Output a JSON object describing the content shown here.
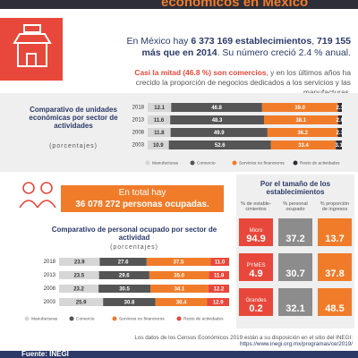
{
  "header": {
    "title": "económicos en México"
  },
  "intro": [
    [
      {
        "text": "En México hay ",
        "bold": false
      },
      {
        "text": "6 373 169 establecimientos",
        "bold": true
      },
      {
        "text": ", ",
        "bold": false
      },
      {
        "text": "719 155 más que en 2014",
        "bold": true
      },
      {
        "text": ". Su número creció 2.4 % anual.",
        "bold": false
      }
    ],
    [
      {
        "text": "Casi la mitad (46.8 %) son comercios",
        "bold": true,
        "color": "#e8483b"
      },
      {
        "text": ", y en los últimos años ha crecido la proporción de negocios dedicados a los servicios y las manufacturas.",
        "bold": false
      }
    ]
  ],
  "chart_data": [
    {
      "type": "bar",
      "orientation": "horizontal",
      "stacked": true,
      "title": "Comparativo de unidades económicas por sector de actividades",
      "subtitle": "(porcentajes)",
      "categories": [
        "2018",
        "2013",
        "2008",
        "2003"
      ],
      "xlim": [
        0,
        100
      ],
      "series": [
        {
          "name": "Manufacturas",
          "color": "#d6d6d6",
          "values": [
            12.1,
            11.6,
            11.8,
            10.9
          ],
          "value_labels": [
            "12.1",
            "11.6",
            "11.8",
            "10.9"
          ]
        },
        {
          "name": "Comercio",
          "color": "#555555",
          "values": [
            46.8,
            48.3,
            49.9,
            52.6
          ],
          "value_labels": [
            "46.8",
            "48.3",
            "49.9",
            "52.6"
          ]
        },
        {
          "name": "Servicios no financieros",
          "color": "#f07c2a",
          "values": [
            39,
            38.1,
            36.2,
            33.4
          ],
          "value_labels": [
            "39.0",
            "38.1",
            "36.2",
            "33.4"
          ]
        },
        {
          "name": "Resto de actividades",
          "color": "#2e2e38",
          "values": [
            2.1,
            2,
            2.1,
            3.1
          ],
          "value_labels": [
            "2.1",
            "2.0",
            "2.1",
            "3.1"
          ]
        }
      ]
    },
    {
      "type": "bar",
      "orientation": "horizontal",
      "stacked": true,
      "title": "Comparativo de personal ocupado por sector de actividad",
      "subtitle": "(porcentajes)",
      "categories": [
        "2018",
        "2013",
        "2008",
        "2003"
      ],
      "xlim": [
        0,
        100
      ],
      "series": [
        {
          "name": "Manufacturas",
          "color": "#d6d6d6",
          "values": [
            23.9,
            23.5,
            23.2,
            25.9
          ],
          "value_labels": [
            "23.9",
            "23.5",
            "23.2",
            "25.9"
          ]
        },
        {
          "name": "Comercio",
          "color": "#555555",
          "values": [
            27.6,
            29.6,
            30.5,
            30.8
          ],
          "value_labels": [
            "27.6",
            "29.6",
            "30.5",
            "30.8"
          ]
        },
        {
          "name": "Servicios no financieros",
          "color": "#f07c2a",
          "values": [
            37.5,
            35,
            34.1,
            30.4
          ],
          "value_labels": [
            "37.5",
            "35.0",
            "34.1",
            "30.4"
          ]
        },
        {
          "name": "Resto de actividades",
          "color": "#e8483b",
          "values": [
            11,
            11.9,
            12.2,
            12.9
          ],
          "value_labels": [
            "11.0",
            "11.9",
            "12.2",
            "12.9"
          ]
        }
      ]
    }
  ],
  "employment": {
    "lead": "En total hay",
    "total": "36 078 272 personas ocupadas."
  },
  "size_table": {
    "title": "Por el tamaño de los establecimientos",
    "headers": [
      "% de estable-cimientos",
      "% personal ocupado",
      "% proporción de ingresos"
    ],
    "colors": [
      "#e8483b",
      "#8c8c8c",
      "#f07c2a"
    ],
    "rows": [
      {
        "label": "Micro",
        "values": [
          "94.9",
          "37.2",
          "13.7"
        ]
      },
      {
        "label": "PYMES",
        "values": [
          "4.9",
          "30.7",
          "37.8"
        ]
      },
      {
        "label": "Grandes",
        "values": [
          "0.2",
          "32.1",
          "48.5"
        ]
      }
    ]
  },
  "footer": {
    "note": "Los datos de los Censos Económicos 2019 están a su disposición en el sitio del INEGI:",
    "url": "https://www.inegi.org.mx/programas/ce/2019/",
    "source": "Fuente: INEGI"
  }
}
